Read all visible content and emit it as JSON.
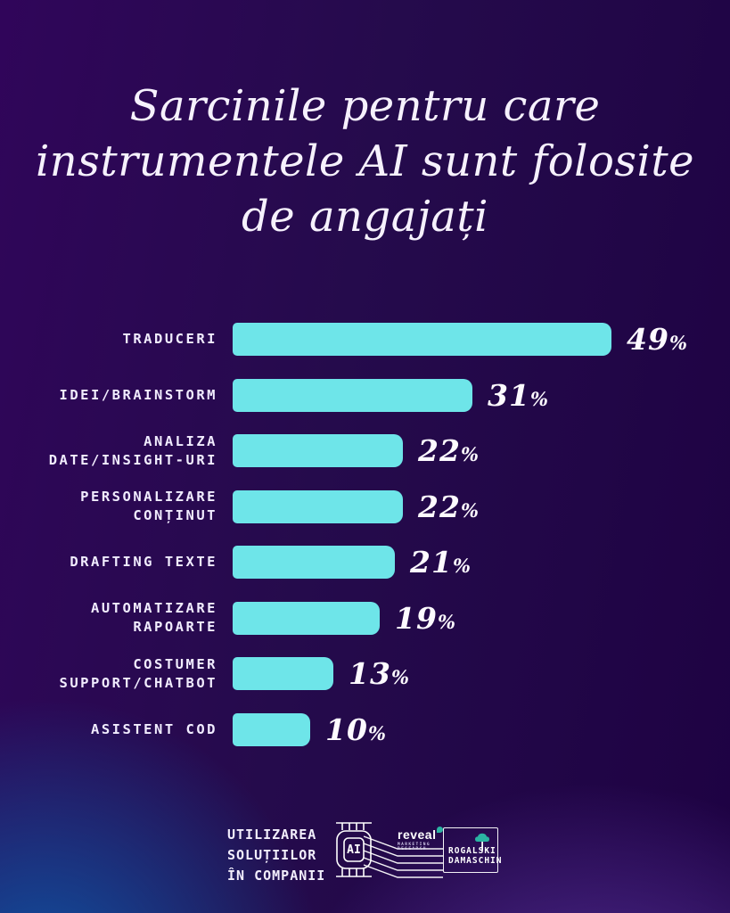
{
  "title": {
    "lines": [
      "Sarcinile pentru care",
      "instrumentele AI sunt folosite",
      "de angajați"
    ]
  },
  "chart_data": {
    "type": "bar",
    "orientation": "horizontal",
    "title": "Sarcinile pentru care instrumentele AI sunt folosite de angajați",
    "categories": [
      "TRADUCERI",
      "IDEI/BRAINSTORM",
      "ANALIZA\nDATE/INSIGHT-URI",
      "PERSONALIZARE\nCONȚINUT",
      "DRAFTING TEXTE",
      "AUTOMATIZARE\nRAPOARTE",
      "COSTUMER\nSUPPORT/CHATBOT",
      "ASISTENT COD"
    ],
    "values": [
      49,
      31,
      22,
      22,
      21,
      19,
      13,
      10
    ],
    "value_suffix": "%",
    "xlim": [
      0,
      49
    ],
    "grid": false,
    "legend": false,
    "bar_color": "#6ee5e9"
  },
  "colors": {
    "background_purple": "#250b4c",
    "glow_blue": "#0e55a3",
    "glow_violet": "#5c35a4",
    "bar_cyan": "#6ee5e9",
    "text_white": "#f6f1fd",
    "accent_teal": "#2bb3a3"
  },
  "footer": {
    "caption_lines": [
      "UTILIZAREA",
      "SOLUȚIILOR",
      "ÎN COMPANII"
    ],
    "chip_label": "AI",
    "reveal_name": "reveal",
    "reveal_sub_lines": [
      "MARKETING",
      "RESEARCH"
    ],
    "rogalski_lines": [
      "ROGALSKI",
      "DAMASCHIN"
    ]
  }
}
